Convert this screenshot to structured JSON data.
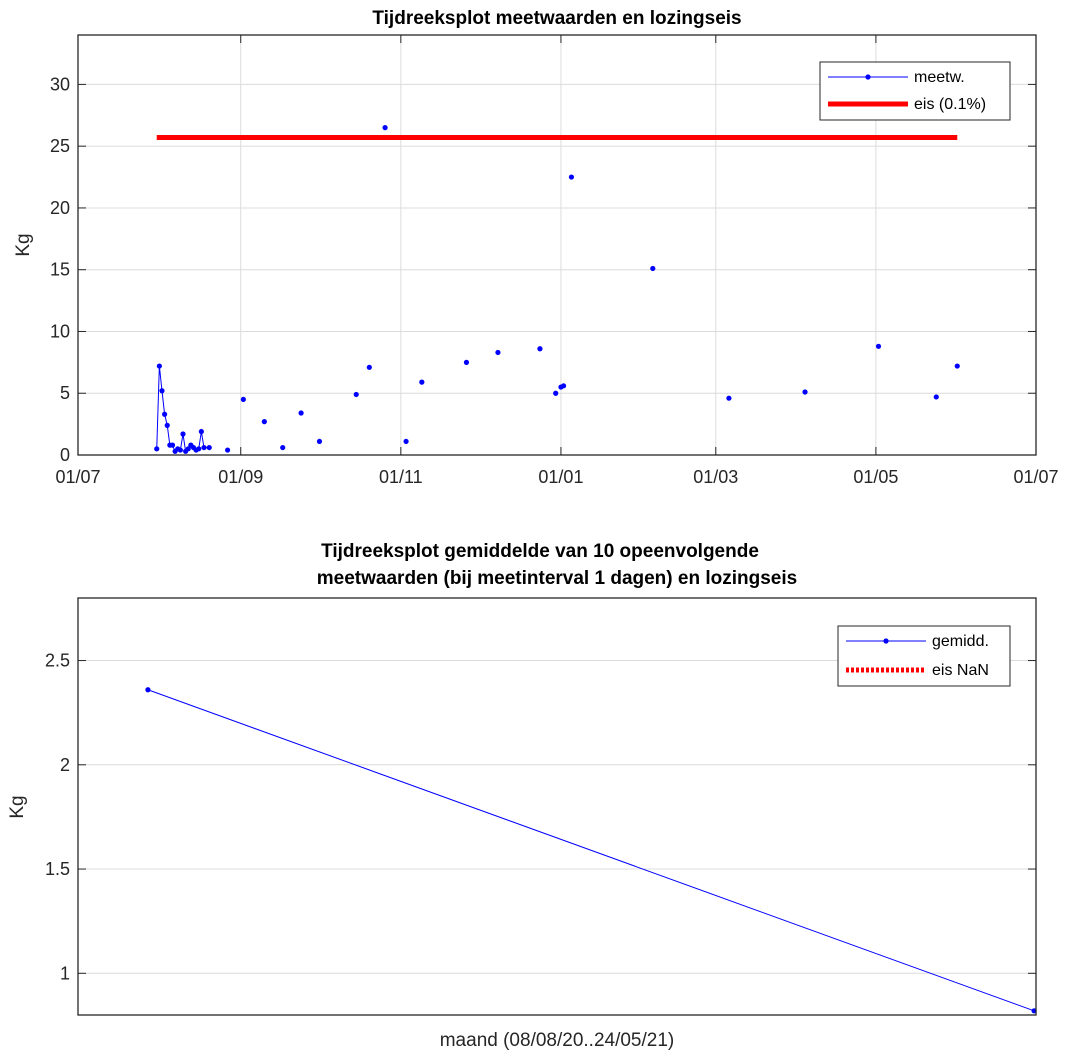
{
  "chart_data": [
    {
      "type": "line",
      "title": "Tijdreeksplot meetwaarden en lozingseis",
      "xlabel": "",
      "ylabel": "Kg",
      "xlim": [
        "2020-07-01",
        "2021-07-01"
      ],
      "ylim": [
        0,
        34
      ],
      "xticks": [
        "2020-07-01",
        "2020-09-01",
        "2020-11-01",
        "2021-01-01",
        "2021-03-01",
        "2021-05-01",
        "2021-07-01"
      ],
      "xticklabels": [
        "01/07",
        "01/09",
        "01/11",
        "01/01",
        "01/03",
        "01/05",
        "01/07"
      ],
      "yticks": [
        0,
        5,
        10,
        15,
        20,
        25,
        30
      ],
      "yticklabels": [
        "0",
        "5",
        "10",
        "15",
        "20",
        "25",
        "30"
      ],
      "grid": true,
      "legend": "top-right",
      "series": [
        {
          "name": "meetw.",
          "color": "#0000ff",
          "style": "line-with-dots",
          "x": [
            "2020-07-31",
            "2020-08-01",
            "2020-08-02",
            "2020-08-03",
            "2020-08-04",
            "2020-08-05",
            "2020-08-06",
            "2020-08-07",
            "2020-08-08",
            "2020-08-09",
            "2020-08-10",
            "2020-08-11",
            "2020-08-12",
            "2020-08-13",
            "2020-08-14",
            "2020-08-15",
            "2020-08-16",
            "2020-08-17",
            "2020-08-18",
            "2020-08-20"
          ],
          "y": [
            0.5,
            7.2,
            5.2,
            3.3,
            2.4,
            0.8,
            0.8,
            0.3,
            0.5,
            0.4,
            1.7,
            0.3,
            0.5,
            0.8,
            0.6,
            0.4,
            0.5,
            1.9,
            0.6,
            0.6
          ]
        },
        {
          "name": "meetw.",
          "color": "#0000ff",
          "style": "dots",
          "x": [
            "2020-08-27",
            "2020-09-02",
            "2020-09-10",
            "2020-09-17",
            "2020-09-24",
            "2020-10-01",
            "2020-10-15",
            "2020-10-20",
            "2020-10-26",
            "2020-11-03",
            "2020-11-09",
            "2020-11-26",
            "2020-12-08",
            "2020-12-24",
            "2020-12-30",
            "2021-01-01",
            "2021-01-02",
            "2021-01-05",
            "2021-02-05",
            "2021-03-06",
            "2021-04-04",
            "2021-05-02",
            "2021-05-24",
            "2021-06-01"
          ],
          "y": [
            0.4,
            4.5,
            2.7,
            0.6,
            3.4,
            1.1,
            4.9,
            7.1,
            26.5,
            1.1,
            5.9,
            7.5,
            8.3,
            8.6,
            5.0,
            5.5,
            5.6,
            22.5,
            15.1,
            4.6,
            5.1,
            8.8,
            4.7,
            7.2
          ]
        },
        {
          "name": "eis (0.1%)",
          "color": "#ff0000",
          "style": "thick-line",
          "x": [
            "2020-07-31",
            "2021-06-01"
          ],
          "y": [
            25.7,
            25.7
          ]
        }
      ]
    },
    {
      "type": "line",
      "title": "Tijdreeksplot gemiddelde van 10 opeenvolgende",
      "subtitle": "meetwaarden (bij meetinterval 1 dagen) en lozingseis",
      "xlabel": "maand (08/08/20..24/05/21)",
      "ylabel": "Kg",
      "ylim": [
        0.8,
        2.8
      ],
      "yticks": [
        1,
        1.5,
        2,
        2.5
      ],
      "yticklabels": [
        "1",
        "1.5",
        "2",
        "2.5"
      ],
      "grid": true,
      "legend": "top-right",
      "series": [
        {
          "name": "gemidd.",
          "color": "#0000ff",
          "style": "line-with-dots",
          "x": [
            "2020-08-08",
            "2021-05-24"
          ],
          "y": [
            2.36,
            0.82
          ]
        },
        {
          "name": "eis NaN",
          "color": "#ff0000",
          "style": "dotted",
          "x": [],
          "y": []
        }
      ]
    }
  ]
}
